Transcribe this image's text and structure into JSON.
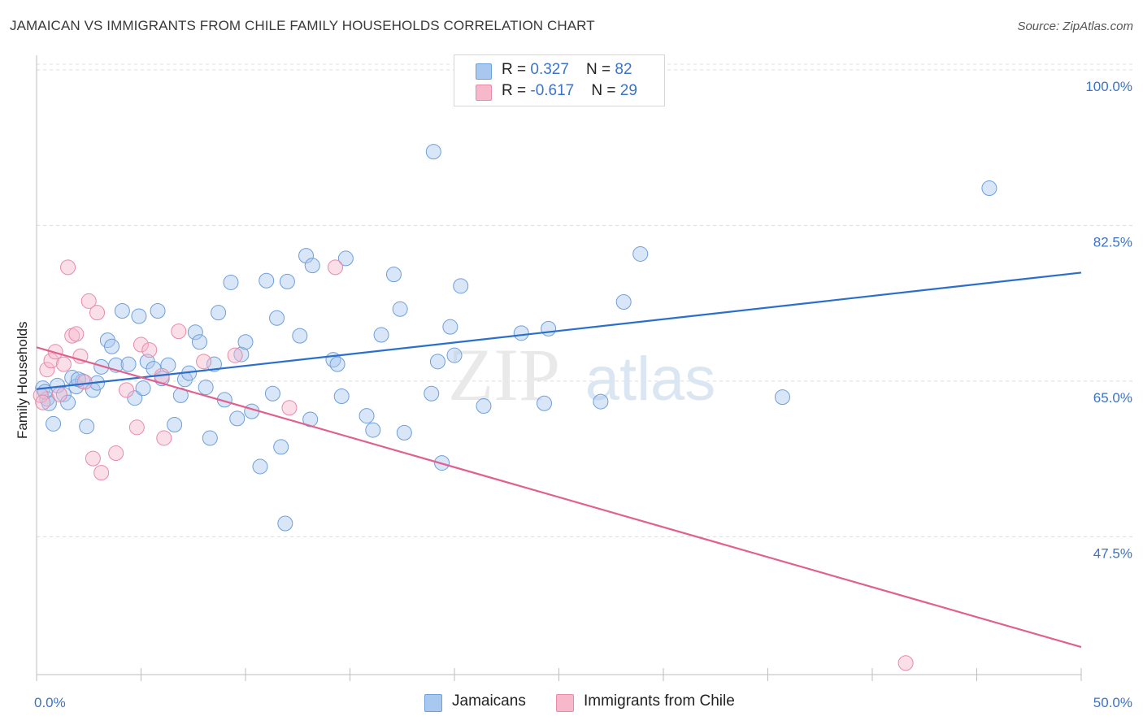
{
  "title": "JAMAICAN VS IMMIGRANTS FROM CHILE FAMILY HOUSEHOLDS CORRELATION CHART",
  "source": "Source: ZipAtlas.com",
  "watermark": {
    "zip": "ZIP",
    "atlas": "atlas"
  },
  "legend": {
    "rows": [
      {
        "r_label": "R = ",
        "r_value": "0.327",
        "n_label": "N = ",
        "n_value": "82",
        "color": "#a9c8f0"
      },
      {
        "r_label": "R = ",
        "r_value": "-0.617",
        "n_label": "N = ",
        "n_value": "29",
        "color": "#f7b8cc"
      }
    ]
  },
  "chart_data": {
    "type": "scatter",
    "xlabel": "",
    "ylabel": "Family Households",
    "xlim": [
      0,
      50
    ],
    "ylim": [
      32,
      101
    ],
    "x_tick_labels": [
      "0.0%",
      "50.0%"
    ],
    "y_ticks": [
      47.5,
      65.0,
      82.5,
      100.0
    ],
    "y_tick_labels": [
      "47.5%",
      "65.0%",
      "82.5%",
      "100.0%"
    ],
    "grid": "horizontal dashed",
    "series": [
      {
        "name": "Jamaicans",
        "color": "#a9c8f0",
        "stroke": "#6d9fdc",
        "trend": {
          "x": [
            0,
            50
          ],
          "y": [
            64.1,
            77.2
          ],
          "color": "#2b6fcc"
        },
        "points": [
          [
            0.3,
            64.2
          ],
          [
            0.5,
            63.0
          ],
          [
            0.6,
            62.5
          ],
          [
            0.8,
            60.2
          ],
          [
            1.0,
            64.5
          ],
          [
            1.3,
            63.5
          ],
          [
            1.5,
            62.6
          ],
          [
            1.7,
            65.4
          ],
          [
            1.9,
            64.4
          ],
          [
            2.2,
            65.0
          ],
          [
            2.4,
            59.9
          ],
          [
            2.7,
            64.0
          ],
          [
            2.9,
            64.8
          ],
          [
            3.1,
            66.6
          ],
          [
            3.4,
            69.6
          ],
          [
            3.6,
            68.9
          ],
          [
            3.8,
            66.8
          ],
          [
            4.1,
            72.9
          ],
          [
            4.4,
            66.9
          ],
          [
            4.7,
            63.1
          ],
          [
            4.9,
            72.3
          ],
          [
            5.1,
            64.2
          ],
          [
            5.3,
            67.2
          ],
          [
            5.6,
            66.4
          ],
          [
            5.8,
            72.9
          ],
          [
            6.0,
            65.3
          ],
          [
            6.3,
            66.8
          ],
          [
            6.6,
            60.1
          ],
          [
            6.9,
            63.4
          ],
          [
            7.1,
            65.2
          ],
          [
            7.3,
            65.9
          ],
          [
            7.6,
            70.5
          ],
          [
            7.8,
            69.4
          ],
          [
            8.1,
            64.3
          ],
          [
            8.3,
            58.6
          ],
          [
            8.5,
            66.9
          ],
          [
            8.7,
            72.7
          ],
          [
            9.0,
            62.9
          ],
          [
            9.3,
            76.1
          ],
          [
            9.6,
            60.8
          ],
          [
            9.8,
            68.0
          ],
          [
            10.0,
            69.4
          ],
          [
            10.3,
            61.6
          ],
          [
            10.7,
            55.4
          ],
          [
            11.0,
            76.3
          ],
          [
            11.3,
            63.6
          ],
          [
            11.5,
            72.1
          ],
          [
            11.7,
            57.6
          ],
          [
            11.9,
            49.0
          ],
          [
            12.0,
            76.2
          ],
          [
            12.6,
            70.1
          ],
          [
            12.9,
            79.1
          ],
          [
            13.1,
            60.7
          ],
          [
            13.2,
            78.0
          ],
          [
            14.2,
            67.4
          ],
          [
            14.4,
            66.9
          ],
          [
            14.6,
            63.3
          ],
          [
            14.8,
            78.8
          ],
          [
            15.8,
            61.1
          ],
          [
            16.1,
            59.5
          ],
          [
            16.5,
            70.2
          ],
          [
            17.1,
            77.0
          ],
          [
            17.4,
            73.1
          ],
          [
            17.6,
            59.2
          ],
          [
            18.9,
            63.6
          ],
          [
            19.0,
            90.8
          ],
          [
            19.2,
            67.2
          ],
          [
            19.4,
            55.8
          ],
          [
            19.8,
            71.1
          ],
          [
            20.0,
            67.9
          ],
          [
            20.3,
            75.7
          ],
          [
            21.4,
            62.2
          ],
          [
            23.2,
            70.4
          ],
          [
            24.3,
            62.5
          ],
          [
            24.5,
            70.9
          ],
          [
            27.0,
            62.7
          ],
          [
            28.1,
            73.9
          ],
          [
            28.9,
            79.3
          ],
          [
            35.7,
            63.2
          ],
          [
            45.6,
            86.7
          ],
          [
            0.4,
            63.8
          ],
          [
            2.0,
            65.2
          ]
        ]
      },
      {
        "name": "Immigrants from Chile",
        "color": "#f7b8cc",
        "stroke": "#e88aa8",
        "trend": {
          "x": [
            0,
            50
          ],
          "y": [
            68.8,
            35.1
          ],
          "color": "#e0608e"
        },
        "points": [
          [
            0.2,
            63.4
          ],
          [
            0.3,
            62.6
          ],
          [
            0.5,
            66.3
          ],
          [
            0.7,
            67.3
          ],
          [
            0.9,
            68.3
          ],
          [
            1.1,
            63.5
          ],
          [
            1.3,
            66.9
          ],
          [
            1.5,
            77.8
          ],
          [
            1.7,
            70.1
          ],
          [
            1.9,
            70.3
          ],
          [
            2.1,
            67.8
          ],
          [
            2.3,
            64.9
          ],
          [
            2.5,
            74.0
          ],
          [
            2.7,
            56.3
          ],
          [
            2.9,
            72.7
          ],
          [
            3.1,
            54.7
          ],
          [
            3.8,
            56.9
          ],
          [
            4.3,
            64.0
          ],
          [
            4.8,
            59.8
          ],
          [
            5.0,
            69.1
          ],
          [
            5.4,
            68.5
          ],
          [
            6.0,
            65.6
          ],
          [
            6.1,
            58.6
          ],
          [
            6.8,
            70.6
          ],
          [
            8.0,
            67.2
          ],
          [
            9.5,
            67.9
          ],
          [
            12.1,
            62.0
          ],
          [
            14.3,
            77.8
          ],
          [
            41.6,
            33.3
          ]
        ]
      }
    ]
  },
  "bottom_legend": {
    "items": [
      {
        "label": "Jamaicans",
        "color": "#a9c8f0"
      },
      {
        "label": "Immigrants from Chile",
        "color": "#f7b8cc"
      }
    ]
  }
}
